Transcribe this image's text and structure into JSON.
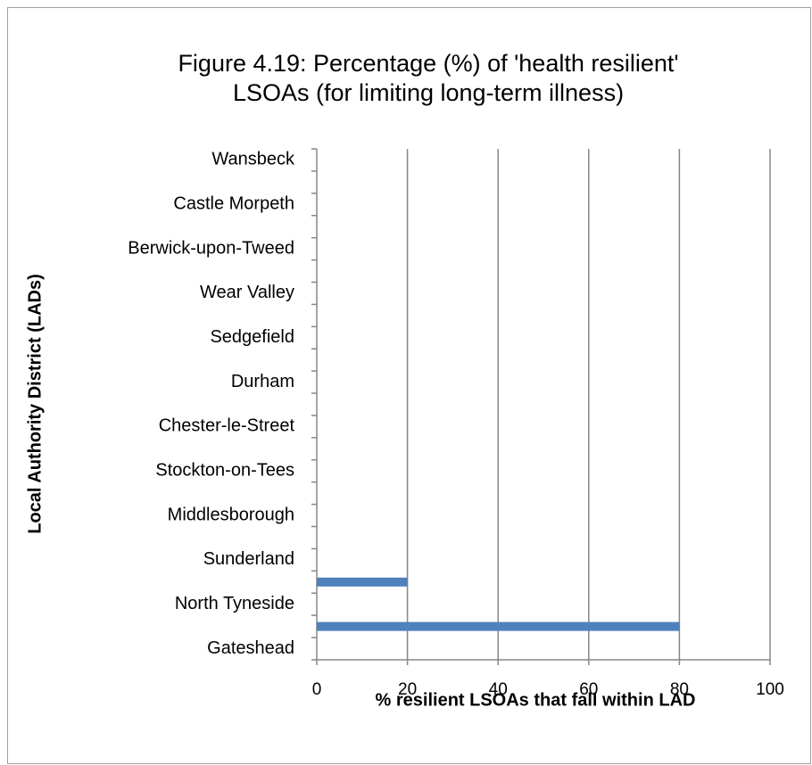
{
  "chart_data": {
    "type": "hbar",
    "title": [
      "Figure 4.19: Percentage (%) of 'health resilient'",
      "LSOAs (for limiting long-term illness)"
    ],
    "x_label": "% resilient LSOAs that fall within LAD",
    "y_label": "Local Authority District (LADs)",
    "categories": [
      "Gateshead",
      null,
      "North Tyneside",
      null,
      "Sunderland",
      null,
      "Middlesborough",
      null,
      "Stockton-on-Tees",
      null,
      "Chester-le-Street",
      null,
      "Durham",
      null,
      "Sedgefield",
      null,
      "Wear Valley",
      null,
      "Berwick-upon-Tweed",
      null,
      "Castle Morpeth",
      null,
      "Wansbeck"
    ],
    "values": [
      0,
      80,
      0,
      20,
      0,
      0,
      0,
      0,
      0,
      0,
      0,
      0,
      0,
      0,
      0,
      0,
      0,
      0,
      0,
      0,
      0,
      0,
      0
    ],
    "color": "#4f81bd",
    "xlim": [
      0,
      100
    ],
    "xticks": [
      0,
      20,
      40,
      60,
      80,
      100
    ],
    "grid": true
  }
}
